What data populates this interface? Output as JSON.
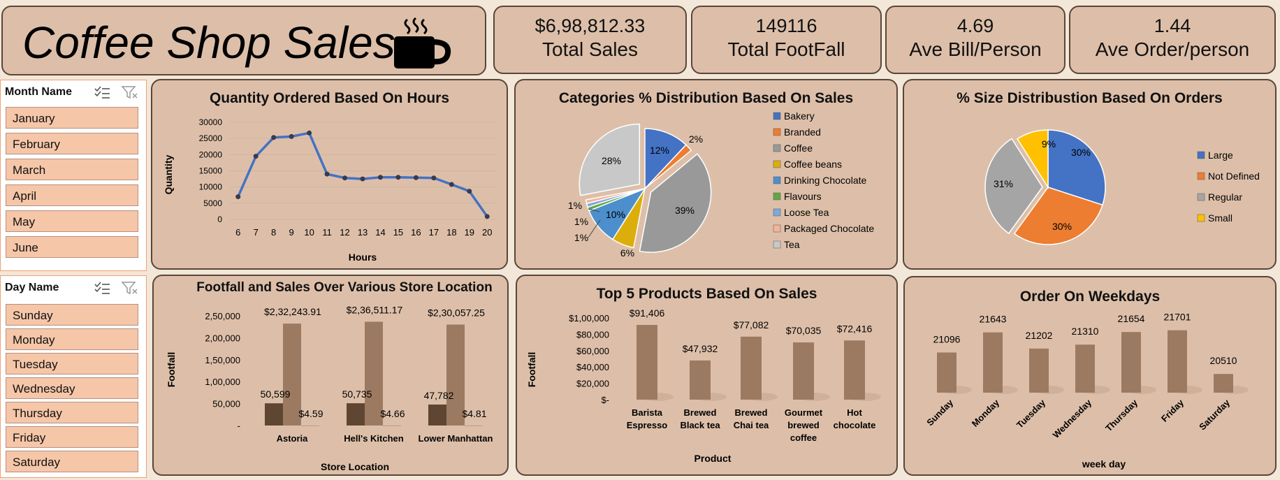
{
  "header": {
    "title": "Coffee Shop Sales",
    "cup_icon": "coffee-cup-icon"
  },
  "kpis": [
    {
      "value": "$6,98,812.33",
      "label": "Total Sales"
    },
    {
      "value": "149116",
      "label": "Total FootFall"
    },
    {
      "value": "4.69",
      "label": "Ave Bill/Person"
    },
    {
      "value": "1.44",
      "label": "Ave Order/person"
    }
  ],
  "slicers": {
    "month": {
      "title": "Month Name",
      "items": [
        "January",
        "February",
        "March",
        "April",
        "May",
        "June"
      ]
    },
    "day": {
      "title": "Day Name",
      "items": [
        "Sunday",
        "Monday",
        "Tuesday",
        "Wednesday",
        "Thursday",
        "Friday",
        "Saturday"
      ]
    },
    "icons": [
      "multi-select-icon",
      "clear-filter-icon"
    ]
  },
  "colors": {
    "panel": "#ddbfa9",
    "border": "#5a4638",
    "line": "#4472c4",
    "bar_light": "#9c7a62",
    "bar_dark": "#5e4632",
    "slicer_item": "#f5c6a8"
  },
  "chart_data": [
    {
      "type": "line",
      "title": "Quantity Ordered Based On Hours",
      "xlabel": "Hours",
      "ylabel": "Quantity",
      "x": [
        6,
        7,
        8,
        9,
        10,
        11,
        12,
        13,
        14,
        15,
        16,
        17,
        18,
        19,
        20
      ],
      "y": [
        7000,
        19500,
        25300,
        25600,
        26700,
        14000,
        12800,
        12500,
        13000,
        13000,
        12900,
        12800,
        10800,
        8700,
        900
      ],
      "ylim": [
        0,
        30000
      ],
      "y_ticks": [
        "0",
        "5000",
        "10000",
        "15000",
        "20000",
        "25000",
        "30000"
      ],
      "grid": true
    },
    {
      "type": "pie",
      "title": "Categories % Distribution Based On Sales",
      "labels": [
        "Bakery",
        "Branded",
        "Coffee",
        "Coffee beans",
        "Drinking Chocolate",
        "Flavours",
        "Loose Tea",
        "Packaged Chocolate",
        "Tea"
      ],
      "values": [
        12,
        2,
        39,
        6,
        10,
        1,
        1,
        1,
        28
      ],
      "value_labels": [
        "12%",
        "2%",
        "39%",
        "6%",
        "10%",
        "1%",
        "1%",
        "1%",
        "28%"
      ],
      "colors": [
        "#4472c4",
        "#ed7d31",
        "#999999",
        "#dcae0c",
        "#4c8fcc",
        "#5fa845",
        "#7fa8dc",
        "#f4b39a",
        "#c8c8c8"
      ],
      "legend": "right"
    },
    {
      "type": "pie",
      "title": "% Size Distribustion Based On Orders",
      "labels": [
        "Large",
        "Not Defined",
        "Regular",
        "Small"
      ],
      "values": [
        30,
        30,
        31,
        9
      ],
      "value_labels": [
        "30%",
        "30%",
        "31%",
        "9%"
      ],
      "colors": [
        "#4472c4",
        "#ed7d31",
        "#a5a5a5",
        "#ffc000"
      ],
      "legend": "right"
    },
    {
      "type": "bar",
      "title": "Footfall and Sales Over Various Store Location",
      "xlabel": "Store Location",
      "ylabel": "Footfall",
      "categories": [
        "Astoria",
        "Hell's Kitchen",
        "Lower Manhattan"
      ],
      "series": [
        {
          "values": [
            50599,
            50735,
            47782
          ],
          "labels": [
            "50,599",
            "50,735",
            "47,782"
          ]
        },
        {
          "values": [
            232243.91,
            236511.17,
            230057.25
          ],
          "labels": [
            "$2,32,243.91",
            "$2,36,511.17",
            "$2,30,057.25"
          ]
        },
        {
          "values": [
            4.59,
            4.66,
            4.81
          ],
          "labels": [
            "$4.59",
            "$4.66",
            "$4.81"
          ]
        }
      ],
      "ylim": [
        0,
        250000
      ],
      "y_ticks": [
        "-",
        "50,000",
        "1,00,000",
        "1,50,000",
        "2,00,000",
        "2,50,000"
      ]
    },
    {
      "type": "bar",
      "title": "Top 5 Products Based On Sales",
      "xlabel": "Product",
      "ylabel": "Footfall",
      "categories": [
        "Barista Espresso",
        "Brewed Black tea",
        "Brewed Chai tea",
        "Gourmet brewed coffee",
        "Hot chocolate"
      ],
      "category_lines": [
        [
          "Barista",
          "Espresso"
        ],
        [
          "Brewed",
          "Black tea"
        ],
        [
          "Brewed",
          "Chai tea"
        ],
        [
          "Gourmet",
          "brewed",
          "coffee"
        ],
        [
          "Hot",
          "chocolate"
        ]
      ],
      "values": [
        91406,
        47932,
        77082,
        70035,
        72416
      ],
      "value_labels": [
        "$91,406",
        "$47,932",
        "$77,082",
        "$70,035",
        "$72,416"
      ],
      "ylim": [
        0,
        100000
      ],
      "y_ticks": [
        "$-",
        "$20,000",
        "$40,000",
        "$60,000",
        "$80,000",
        "$1,00,000"
      ]
    },
    {
      "type": "bar",
      "title": "Order On Weekdays",
      "xlabel": "week day",
      "categories": [
        "Sunday",
        "Monday",
        "Tuesday",
        "Wednesday",
        "Thursday",
        "Friday",
        "Saturday"
      ],
      "values": [
        21096,
        21643,
        21202,
        21310,
        21654,
        21701,
        20510
      ],
      "value_labels": [
        "21096",
        "21643",
        "21202",
        "21310",
        "21654",
        "21701",
        "20510"
      ],
      "ylim": [
        20000,
        22000
      ]
    }
  ]
}
